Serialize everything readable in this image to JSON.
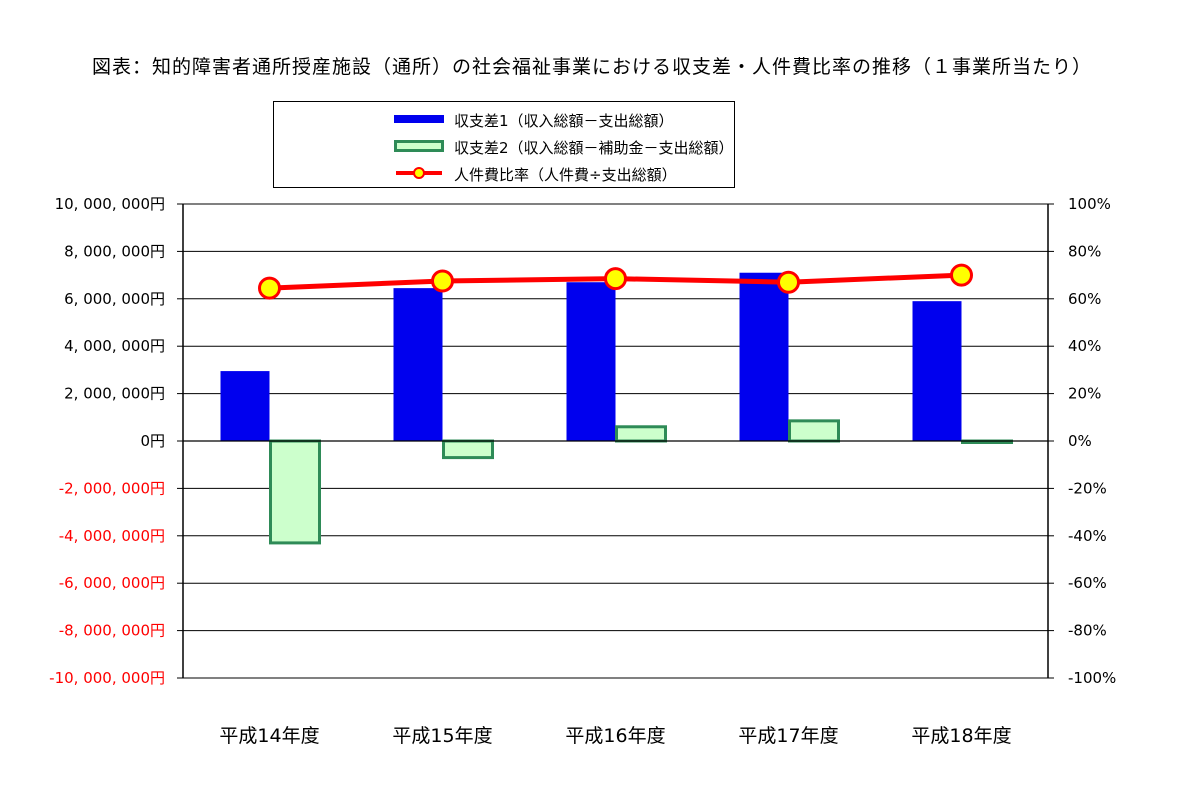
{
  "title": "図表：知的障害者通所授産施設（通所）の社会福祉事業における収支差・人件費比率の推移（１事業所当たり）",
  "legend": [
    {
      "key": "s1",
      "label": "収支差1（収入総額－支出総額）"
    },
    {
      "key": "s2",
      "label": "収支差2（収入総額－補助金－支出総額）"
    },
    {
      "key": "s3",
      "label": "人件費比率（人件費÷支出総額）"
    }
  ],
  "colors": {
    "series1_fill": "#0000ee",
    "series2_fill": "#ccffcc",
    "series2_stroke": "#2e8b57",
    "line": "#ff0000",
    "marker_fill": "#ffff00",
    "marker_stroke": "#ff0000",
    "negative_tick": "#ff0000"
  },
  "chart_data": {
    "type": "bar",
    "title": "図表：知的障害者通所授産施設（通所）の社会福祉事業における収支差・人件費比率の推移（１事業所当たり）",
    "categories": [
      "平成14年度",
      "平成15年度",
      "平成16年度",
      "平成17年度",
      "平成18年度"
    ],
    "series": [
      {
        "name": "収支差1（収入総額－支出総額）",
        "axis": "left",
        "kind": "bar",
        "values": [
          2950000,
          6450000,
          6700000,
          7100000,
          5900000
        ]
      },
      {
        "name": "収支差2（収入総額－補助金－支出総額）",
        "axis": "left",
        "kind": "bar",
        "values": [
          -4300000,
          -700000,
          600000,
          850000,
          -20000
        ]
      },
      {
        "name": "人件費比率（人件費÷支出総額）",
        "axis": "right",
        "kind": "line",
        "values": [
          64.5,
          67.5,
          68.5,
          67.0,
          70.0
        ]
      }
    ],
    "ylim": [
      -10000000,
      10000000
    ],
    "y2lim": [
      -100,
      100
    ],
    "yticks": [
      "10, 000, 000円",
      "8, 000, 000円",
      "6, 000, 000円",
      "4, 000, 000円",
      "2, 000, 000円",
      "0円",
      "-2, 000, 000円",
      "-4, 000, 000円",
      "-6, 000, 000円",
      "-8, 000, 000円",
      "-10, 000, 000円"
    ],
    "ytick_values": [
      10000000,
      8000000,
      6000000,
      4000000,
      2000000,
      0,
      -2000000,
      -4000000,
      -6000000,
      -8000000,
      -10000000
    ],
    "y2ticks": [
      "100%",
      "80%",
      "60%",
      "40%",
      "20%",
      "0%",
      "-20%",
      "-40%",
      "-60%",
      "-80%",
      "-100%"
    ],
    "y2tick_values": [
      100,
      80,
      60,
      40,
      20,
      0,
      -20,
      -40,
      -60,
      -80,
      -100
    ],
    "grid": true,
    "legend_position": "top-center"
  }
}
